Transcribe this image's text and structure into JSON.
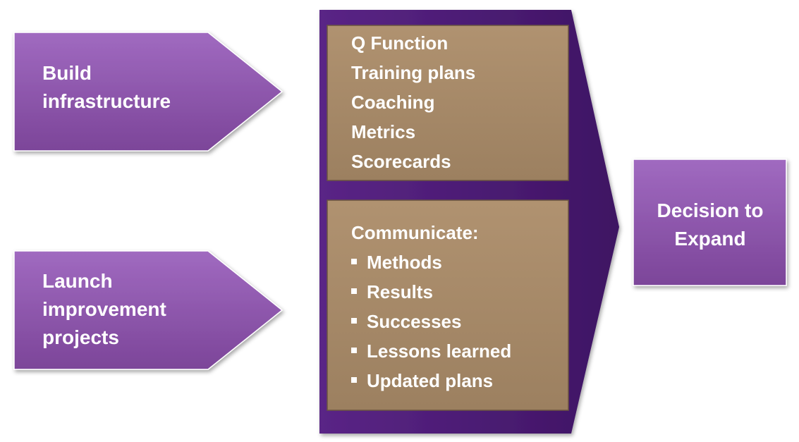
{
  "diagram": {
    "build": {
      "lines": [
        "Build",
        "infrastructure"
      ]
    },
    "launch": {
      "lines": [
        "Launch",
        "improvement",
        "projects"
      ]
    },
    "infrastructure_items": [
      "Q Function",
      "Training plans",
      "Coaching",
      "Metrics",
      "Scorecards"
    ],
    "communicate": {
      "heading": "Communicate:",
      "items": [
        "Methods",
        "Results",
        "Successes",
        "Lessons learned",
        "Updated plans"
      ]
    },
    "decision": {
      "lines": [
        "Decision to",
        "Expand"
      ]
    },
    "colors": {
      "light_purple": "#8a52a8",
      "dark_purple": "#4a1c73",
      "tan": "#a88b68",
      "white": "#ffffff"
    }
  }
}
